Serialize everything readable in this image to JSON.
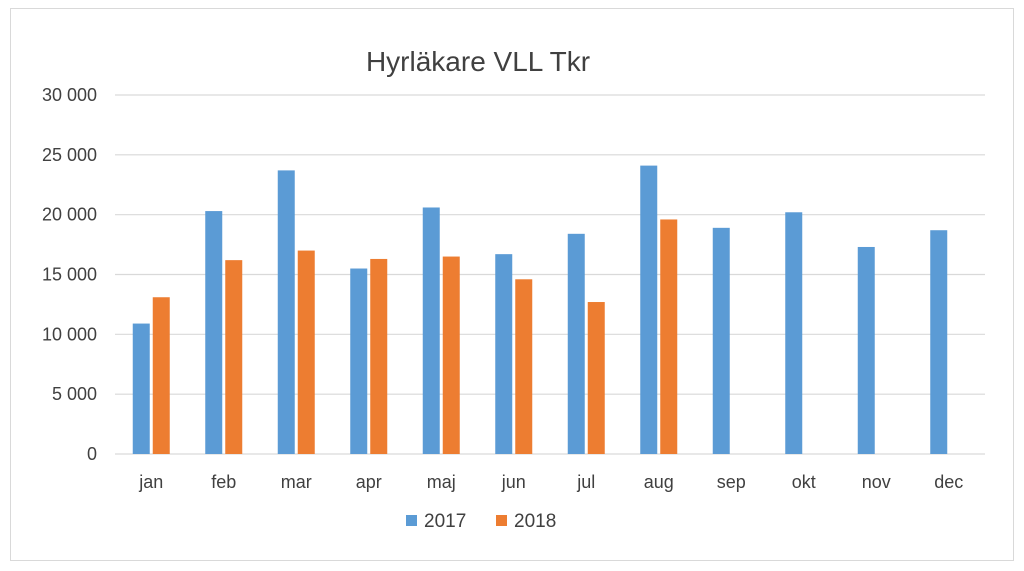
{
  "chart_data": {
    "type": "bar",
    "title": "Hyrläkare VLL Tkr",
    "xlabel": "",
    "ylabel": "",
    "categories": [
      "jan",
      "feb",
      "mar",
      "apr",
      "maj",
      "jun",
      "jul",
      "aug",
      "sep",
      "okt",
      "nov",
      "dec"
    ],
    "series": [
      {
        "name": "2017",
        "color": "#5b9bd5",
        "values": [
          10900,
          20300,
          23700,
          15500,
          20600,
          16700,
          18400,
          24100,
          18900,
          20200,
          17300,
          18700
        ]
      },
      {
        "name": "2018",
        "color": "#ed7d31",
        "values": [
          13100,
          16200,
          17000,
          16300,
          16500,
          14600,
          12700,
          19600,
          null,
          null,
          null,
          null
        ]
      }
    ],
    "ylim": [
      0,
      30000
    ],
    "yticks": [
      0,
      5000,
      10000,
      15000,
      20000,
      25000,
      30000
    ],
    "ytick_labels": [
      "0",
      "5 000",
      "10 000",
      "15 000",
      "20 000",
      "25 000",
      "30 000"
    ],
    "grid": true,
    "gridline_color": "#d9d9d9",
    "legend_position": "bottom"
  }
}
